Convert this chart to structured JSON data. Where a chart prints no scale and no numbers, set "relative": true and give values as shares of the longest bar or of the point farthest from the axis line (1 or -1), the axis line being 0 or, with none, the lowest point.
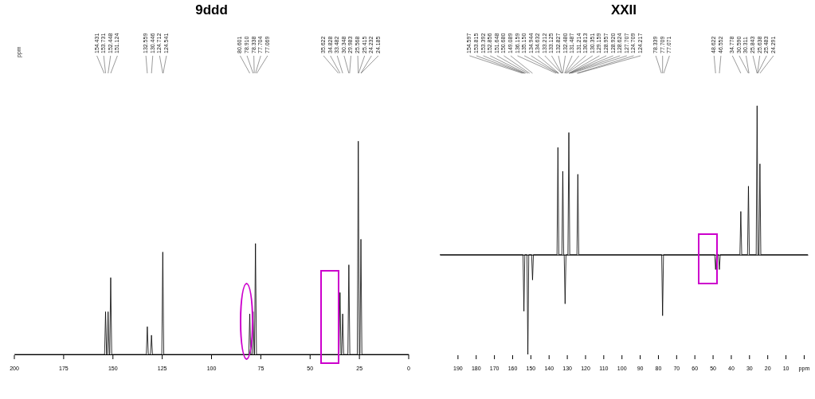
{
  "chart_data": [
    {
      "type": "line",
      "title": "9ddd",
      "relative": true,
      "xlim": [
        200,
        0
      ],
      "xticks": [
        200,
        175,
        150,
        125,
        100,
        75,
        50,
        25,
        0
      ],
      "series": [
        {
          "color": "#000000",
          "x": [
            200,
            154.231,
            153.731,
            153.231,
            152.948,
            152.448,
            151.948,
            151.624,
            151.124,
            150.624,
            133.059,
            132.559,
            132.059,
            130.946,
            130.446,
            129.946,
            125.212,
            124.712,
            124.212,
            81.101,
            80.601,
            80.101,
            79.41,
            78.91,
            78.41,
            78.204,
            77.704,
            77.204,
            35.328,
            34.828,
            34.328,
            33.982,
            33.482,
            32.982,
            30.848,
            30.348,
            29.848,
            26.068,
            25.568,
            25.068,
            24.732,
            24.232,
            23.732,
            0
          ],
          "values": [
            0,
            0,
            0.2,
            0,
            0,
            0.2,
            0,
            0,
            0.36,
            0,
            0,
            0.13,
            0,
            0,
            0.09,
            0,
            0,
            0.48,
            0,
            0,
            0.19,
            0,
            0,
            0.2,
            0,
            0,
            0.52,
            0,
            0,
            0.29,
            0,
            0,
            0.19,
            0,
            0,
            0.42,
            0,
            0,
            1,
            0,
            0,
            0.54,
            0,
            0
          ]
        }
      ],
      "annotations": [
        "ppm",
        {
          "text": "154.431",
          "x": 154.431
        },
        {
          "text": "153.731",
          "x": 153.731
        },
        {
          "text": "152.448",
          "x": 152.448
        },
        {
          "text": "151.124",
          "x": 151.124
        },
        {
          "text": "132.559",
          "x": 132.559
        },
        {
          "text": "130.446",
          "x": 130.446
        },
        {
          "text": "124.712",
          "x": 124.712
        },
        {
          "text": "124.541",
          "x": 124.541
        },
        {
          "text": "80.601",
          "x": 80.601
        },
        {
          "text": "78.910",
          "x": 78.91
        },
        {
          "text": "78.338",
          "x": 78.338
        },
        {
          "text": "77.704",
          "x": 77.704
        },
        {
          "text": "77.069",
          "x": 77.069
        },
        {
          "text": "35.622",
          "x": 35.622
        },
        {
          "text": "34.828",
          "x": 34.828
        },
        {
          "text": "33.482",
          "x": 33.482
        },
        {
          "text": "30.348",
          "x": 30.348
        },
        {
          "text": "29.983",
          "x": 29.983
        },
        {
          "text": "25.568",
          "x": 25.568
        },
        {
          "text": "25.415",
          "x": 25.415
        },
        {
          "text": "24.232",
          "x": 24.232
        },
        {
          "text": "24.185",
          "x": 24.185
        }
      ]
    },
    {
      "type": "line",
      "title": "XXII",
      "relative": true,
      "xlim": [
        200,
        -2
      ],
      "xticks": [
        190,
        180,
        170,
        160,
        150,
        140,
        130,
        120,
        110,
        100,
        90,
        80,
        70,
        60,
        50,
        40,
        30,
        20,
        10,
        {
          "value": 0,
          "label": "ppm"
        }
      ],
      "series": [
        {
          "color": "#000000",
          "x": [
            200,
            154.315,
            153.815,
            153.315,
            152.148,
            151.648,
            151.148,
            149.589,
            149.089,
            148.589,
            135.65,
            135.15,
            134.65,
            132.98,
            132.48,
            131.98,
            131.714,
            131.214,
            130.714,
            129.659,
            129.159,
            128.659,
            124.717,
            124.217,
            123.717,
            78.209,
            77.709,
            77.209,
            49.122,
            48.622,
            48.122,
            47.052,
            46.552,
            46.052,
            35.278,
            34.778,
            34.278,
            31.09,
            30.59,
            30.09,
            26.343,
            25.843,
            25.343,
            24.791,
            24.291,
            23.791,
            -2
          ],
          "values": [
            0,
            0,
            -0.38,
            0,
            0,
            -0.67,
            0,
            0,
            -0.17,
            0,
            0,
            0.72,
            0,
            0,
            0.56,
            0,
            0,
            -0.33,
            0,
            0,
            0.82,
            0,
            0,
            0.54,
            0,
            0,
            -0.41,
            0,
            0,
            -0.1,
            0,
            0,
            -0.1,
            0,
            0,
            0.29,
            0,
            0,
            0.46,
            0,
            0,
            1,
            0,
            0,
            0.61,
            0,
            0
          ]
        }
      ],
      "annotations": [
        {
          "text": "154.597",
          "x": 154.597
        },
        {
          "text": "153.815",
          "x": 153.815
        },
        {
          "text": "153.392",
          "x": 153.392
        },
        {
          "text": "152.856",
          "x": 152.856
        },
        {
          "text": "151.648",
          "x": 151.648
        },
        {
          "text": "150.680",
          "x": 150.68
        },
        {
          "text": "149.089",
          "x": 149.089
        },
        {
          "text": "136.159",
          "x": 136.159
        },
        {
          "text": "135.150",
          "x": 135.15
        },
        {
          "text": "134.944",
          "x": 134.944
        },
        {
          "text": "134.632",
          "x": 134.632
        },
        {
          "text": "133.212",
          "x": 133.212
        },
        {
          "text": "133.125",
          "x": 133.125
        },
        {
          "text": "132.827",
          "x": 132.827
        },
        {
          "text": "132.480",
          "x": 132.48
        },
        {
          "text": "131.487",
          "x": 131.487
        },
        {
          "text": "131.214",
          "x": 131.214
        },
        {
          "text": "130.813",
          "x": 130.813
        },
        {
          "text": "130.351",
          "x": 130.351
        },
        {
          "text": "129.159",
          "x": 129.159
        },
        {
          "text": "128.957",
          "x": 128.957
        },
        {
          "text": "128.920",
          "x": 128.92
        },
        {
          "text": "128.624",
          "x": 128.624
        },
        {
          "text": "127.707",
          "x": 127.707
        },
        {
          "text": "124.709",
          "x": 124.709
        },
        {
          "text": "124.217",
          "x": 124.217
        },
        {
          "text": "78.339",
          "x": 78.339
        },
        {
          "text": "77.709",
          "x": 77.709
        },
        {
          "text": "77.071",
          "x": 77.071
        },
        {
          "text": "48.622",
          "x": 48.622
        },
        {
          "text": "46.552",
          "x": 46.552
        },
        {
          "text": "34.778",
          "x": 34.778
        },
        {
          "text": "30.590",
          "x": 30.59
        },
        {
          "text": "30.311",
          "x": 30.311
        },
        {
          "text": "25.843",
          "x": 25.843
        },
        {
          "text": "25.638",
          "x": 25.638
        },
        {
          "text": "25.483",
          "x": 25.483
        },
        {
          "text": "24.291",
          "x": 24.291
        }
      ]
    }
  ]
}
